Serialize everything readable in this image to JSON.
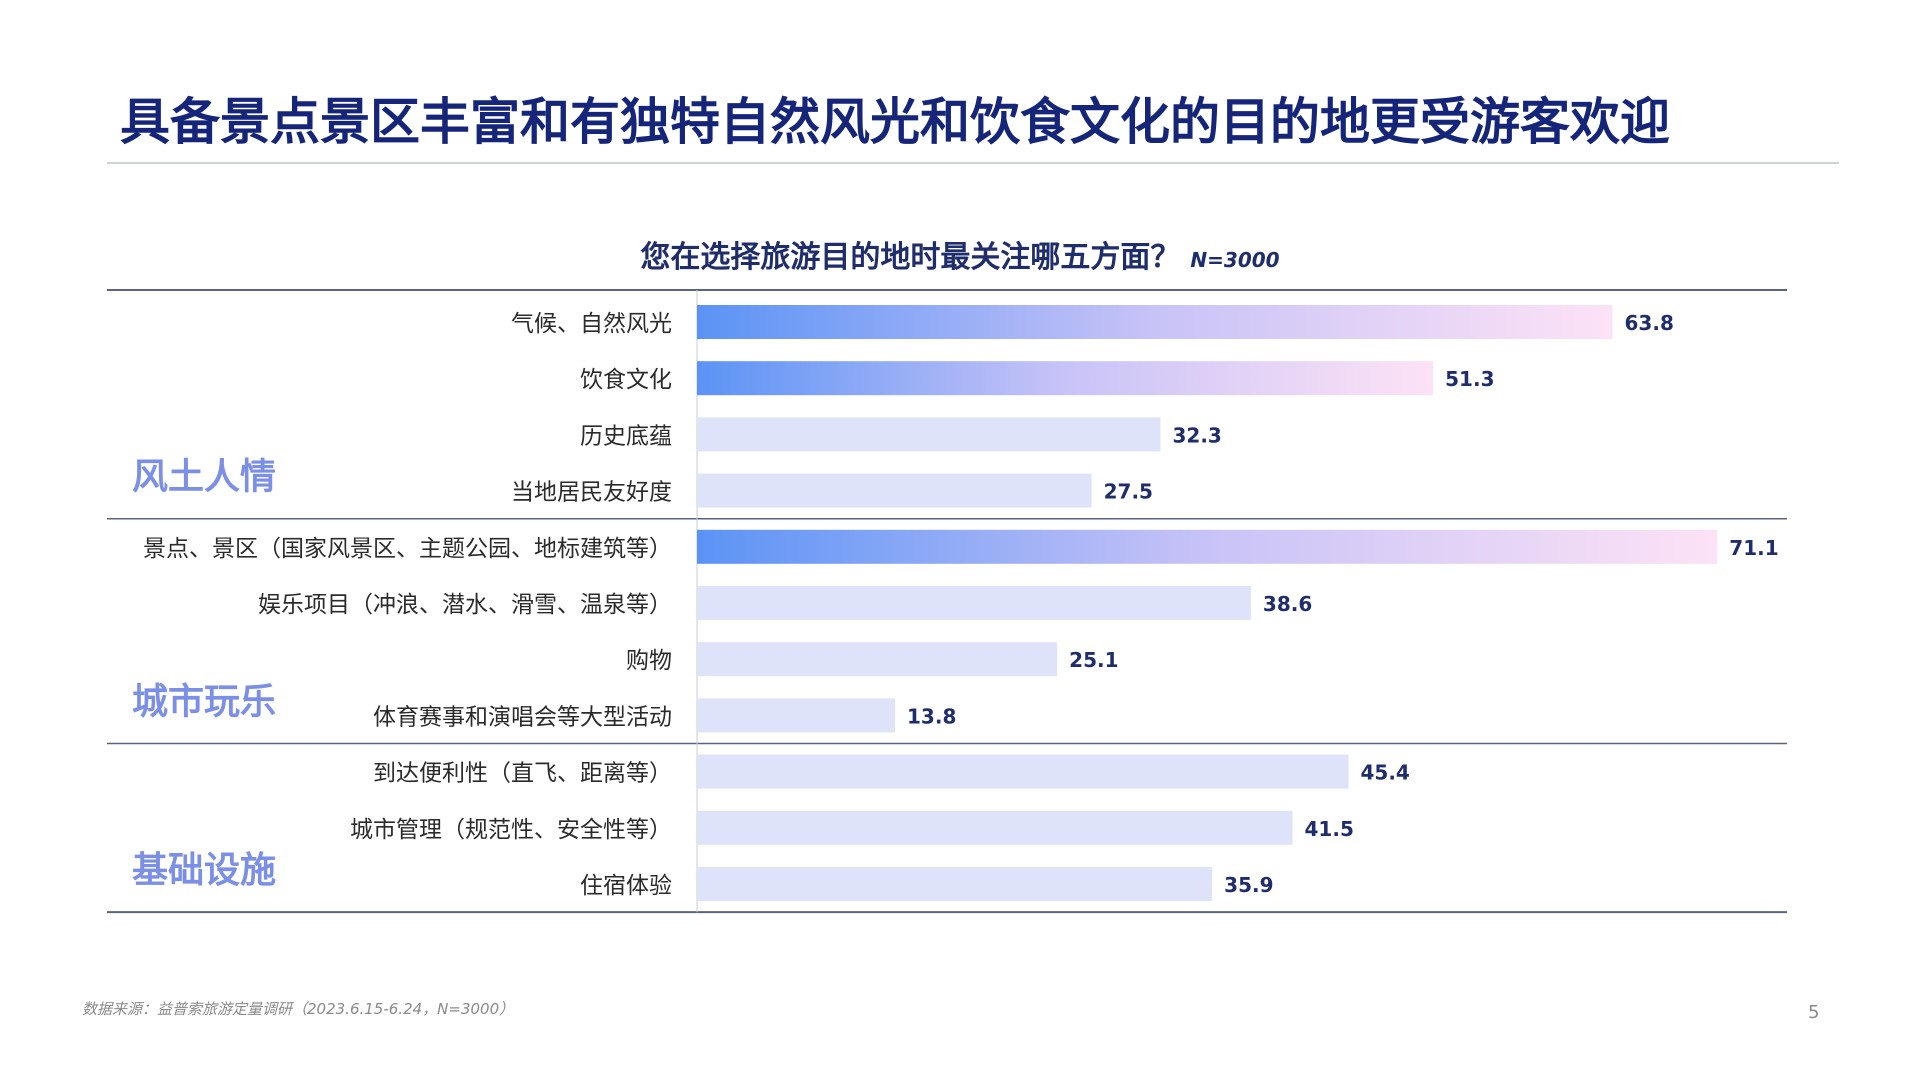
{
  "slide": {
    "title": "具备景点景区丰富和有独特自然风光和饮食文化的目的地更受游客欢迎",
    "source": "数据来源：益普索旅游定量调研（2023.6.15-6.24，N=3000）",
    "page_number": "5"
  },
  "colors": {
    "title": "#15257a",
    "group_label": "#7b8fe6",
    "bar_plain": "#dfe3fa",
    "bar_gradient_start": "#5b93f5",
    "bar_gradient_mid": "#c8c3f7",
    "bar_gradient_end": "#fde2f6",
    "value_label": "#1f2d6b",
    "rule": "#5a6480"
  },
  "chart_data": {
    "type": "bar",
    "orientation": "horizontal",
    "title": "您在选择旅游目的地时最关注哪五方面？",
    "sample_note": "N=3000",
    "groups": [
      {
        "name": "风土人情",
        "categories": [
          "气候、自然风光",
          "饮食文化",
          "历史底蕴",
          "当地居民友好度"
        ],
        "values": [
          63.8,
          51.3,
          32.3,
          27.5
        ],
        "highlighted": [
          true,
          true,
          false,
          false
        ]
      },
      {
        "name": "城市玩乐",
        "categories": [
          "景点、景区（国家风景区、主题公园、地标建筑等）",
          "娱乐项目（冲浪、潜水、滑雪、温泉等）",
          "购物",
          "体育赛事和演唱会等大型活动"
        ],
        "values": [
          71.1,
          38.6,
          25.1,
          13.8
        ],
        "highlighted": [
          true,
          false,
          false,
          false
        ]
      },
      {
        "name": "基础设施",
        "categories": [
          "到达便利性（直飞、距离等）",
          "城市管理（规范性、安全性等）",
          "住宿体验"
        ],
        "values": [
          45.4,
          41.5,
          35.9
        ],
        "highlighted": [
          false,
          false,
          false
        ]
      }
    ],
    "xlim": [
      0,
      75
    ],
    "grid": false,
    "legend": "none"
  }
}
